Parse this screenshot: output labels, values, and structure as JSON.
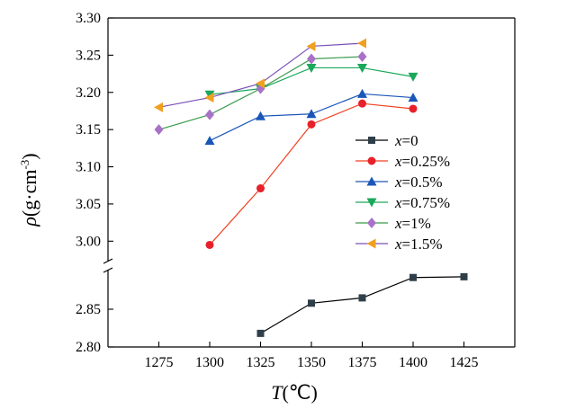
{
  "chart_data": {
    "type": "line",
    "xlabel": "T(℃)",
    "xlabel_italic": "T",
    "xlabel_unit": "(℃)",
    "ylabel": "ρ(g·cm-3)",
    "ylabel_italic": "ρ",
    "ylabel_unit": "(g·cm",
    "ylabel_exp": "-3",
    "ylabel_close": ")",
    "xlim": [
      1250,
      1450
    ],
    "x_ticks": [
      1275,
      1300,
      1325,
      1350,
      1375,
      1400,
      1425
    ],
    "y_axis_break": true,
    "ylim_lower": [
      2.8,
      2.9
    ],
    "ylim_upper": [
      2.975,
      3.3
    ],
    "y_ticks_lower": [
      "2.80",
      "2.85"
    ],
    "y_ticks_upper": [
      "3.00",
      "3.05",
      "3.10",
      "3.15",
      "3.20",
      "3.25",
      "3.30"
    ],
    "grid": false,
    "legend_position": "right",
    "series": [
      {
        "name": "x=0",
        "legend_italic": "x",
        "legend_value": "=0",
        "marker": "square",
        "color": "#2f3f4a",
        "x": [
          1325,
          1350,
          1375,
          1400,
          1425
        ],
        "y": [
          2.818,
          2.858,
          2.865,
          2.892,
          2.893
        ]
      },
      {
        "name": "x=0.25%",
        "legend_italic": "x",
        "legend_value": "=0.25%",
        "marker": "circle",
        "color": "#e8202a",
        "x": [
          1300,
          1325,
          1350,
          1375,
          1400
        ],
        "y": [
          2.995,
          3.071,
          3.157,
          3.185,
          3.178
        ]
      },
      {
        "name": "x=0.5%",
        "legend_italic": "x",
        "legend_value": "=0.5%",
        "marker": "triangle-up",
        "color": "#1a56b8",
        "x": [
          1300,
          1325,
          1350,
          1375,
          1400
        ],
        "y": [
          3.135,
          3.168,
          3.171,
          3.198,
          3.193
        ]
      },
      {
        "name": "x=0.75%",
        "legend_italic": "x",
        "legend_value": "=0.75%",
        "marker": "triangle-down",
        "color": "#1aa85a",
        "x": [
          1300,
          1325,
          1350,
          1375,
          1400
        ],
        "y": [
          3.197,
          3.205,
          3.233,
          3.233,
          3.221
        ]
      },
      {
        "name": "x=1%",
        "legend_italic": "x",
        "legend_value": "=1%",
        "marker": "diamond",
        "color": "#a872c8",
        "x": [
          1275,
          1300,
          1325,
          1350,
          1375
        ],
        "y": [
          3.15,
          3.17,
          3.205,
          3.245,
          3.248
        ]
      },
      {
        "name": "x=1.5%",
        "legend_italic": "x",
        "legend_value": "=1.5%",
        "marker": "triangle-left",
        "color": "#f0a020",
        "x": [
          1275,
          1300,
          1325,
          1350,
          1375
        ],
        "y": [
          3.18,
          3.193,
          3.212,
          3.262,
          3.266
        ]
      }
    ],
    "line_colors": {
      "x=0": "#000000",
      "x=0.25%": "#f04020",
      "x=0.5%": "#1a56b8",
      "x=0.75%": "#1aa85a",
      "x=1%": "#3a9a4a",
      "x=1.5%": "#7a50b8"
    }
  }
}
